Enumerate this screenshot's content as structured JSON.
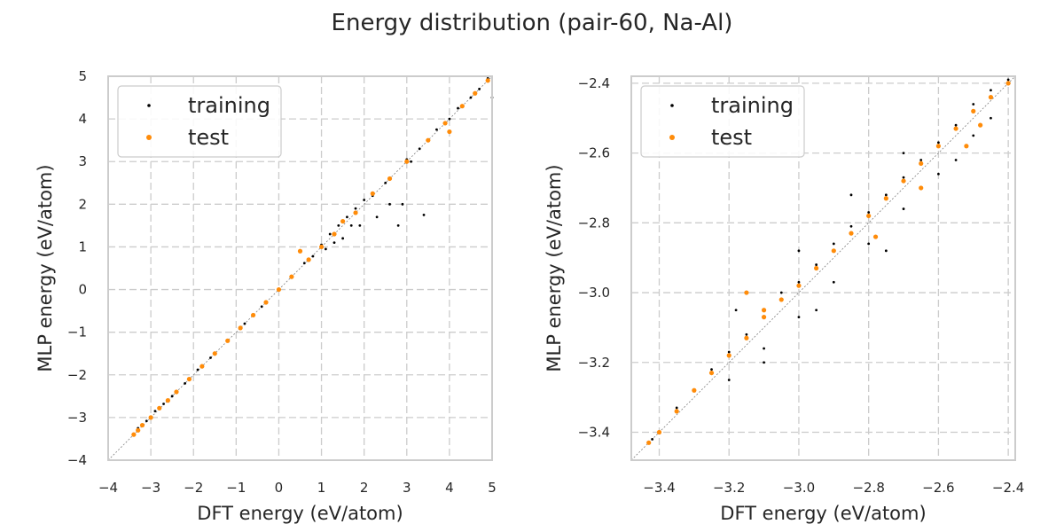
{
  "figure": {
    "title": "Energy distribution (pair-60, Na-Al)"
  },
  "colors": {
    "training": "#000000",
    "test": "#ff8c0a"
  },
  "chart_data": [
    {
      "type": "scatter",
      "title": "",
      "xlabel": "DFT energy (eV/atom)",
      "ylabel": "MLP energy (eV/atom)",
      "xlim": [
        -4,
        5
      ],
      "ylim": [
        -4,
        5
      ],
      "xticks": [
        -4,
        -3,
        -2,
        -1,
        0,
        1,
        2,
        3,
        4,
        5
      ],
      "yticks": [
        -4,
        -3,
        -2,
        -1,
        0,
        1,
        2,
        3,
        4,
        5
      ],
      "xtick_labels": [
        "−4",
        "−3",
        "−2",
        "−1",
        "0",
        "1",
        "2",
        "3",
        "4",
        "5"
      ],
      "ytick_labels": [
        "−4",
        "−3",
        "−2",
        "−1",
        "0",
        "1",
        "2",
        "3",
        "4",
        "5"
      ],
      "grid": true,
      "legend": "top-left",
      "diagonal_reference": true,
      "series": [
        {
          "name": "training",
          "color": "#000000",
          "marker_size": 1.4,
          "points": [
            [
              -3.42,
              -3.4
            ],
            [
              -3.3,
              -3.25
            ],
            [
              -3.1,
              -3.08
            ],
            [
              -2.9,
              -2.85
            ],
            [
              -2.7,
              -2.68
            ],
            [
              -2.5,
              -2.5
            ],
            [
              -2.2,
              -2.2
            ],
            [
              -1.9,
              -1.88
            ],
            [
              -1.6,
              -1.6
            ],
            [
              -1.2,
              -1.2
            ],
            [
              -0.8,
              -0.8
            ],
            [
              -0.4,
              -0.4
            ],
            [
              0.0,
              0.02
            ],
            [
              0.3,
              0.3
            ],
            [
              0.6,
              0.62
            ],
            [
              0.8,
              0.78
            ],
            [
              1.0,
              1.05
            ],
            [
              1.1,
              0.95
            ],
            [
              1.2,
              1.3
            ],
            [
              1.3,
              1.1
            ],
            [
              1.4,
              1.5
            ],
            [
              1.5,
              1.2
            ],
            [
              1.6,
              1.7
            ],
            [
              1.7,
              1.5
            ],
            [
              1.8,
              1.9
            ],
            [
              1.9,
              1.5
            ],
            [
              2.0,
              2.1
            ],
            [
              2.2,
              2.2
            ],
            [
              2.3,
              1.7
            ],
            [
              2.5,
              2.5
            ],
            [
              2.6,
              2.0
            ],
            [
              2.8,
              1.5
            ],
            [
              2.9,
              2.0
            ],
            [
              3.0,
              3.05
            ],
            [
              3.1,
              3.0
            ],
            [
              3.3,
              3.3
            ],
            [
              3.4,
              1.75
            ],
            [
              3.5,
              3.5
            ],
            [
              3.7,
              3.75
            ],
            [
              4.0,
              4.0
            ],
            [
              4.2,
              4.25
            ],
            [
              4.5,
              4.5
            ],
            [
              4.7,
              4.7
            ],
            [
              4.9,
              4.95
            ],
            [
              5.0,
              4.5
            ]
          ]
        },
        {
          "name": "test",
          "color": "#ff8c0a",
          "marker_size": 2.6,
          "points": [
            [
              -3.4,
              -3.4
            ],
            [
              -3.3,
              -3.3
            ],
            [
              -3.2,
              -3.18
            ],
            [
              -3.0,
              -3.0
            ],
            [
              -2.8,
              -2.78
            ],
            [
              -2.6,
              -2.6
            ],
            [
              -2.4,
              -2.4
            ],
            [
              -2.1,
              -2.1
            ],
            [
              -1.8,
              -1.8
            ],
            [
              -1.5,
              -1.5
            ],
            [
              -1.2,
              -1.2
            ],
            [
              -0.9,
              -0.9
            ],
            [
              -0.6,
              -0.6
            ],
            [
              -0.3,
              -0.3
            ],
            [
              0.0,
              0.0
            ],
            [
              0.3,
              0.3
            ],
            [
              0.5,
              0.9
            ],
            [
              0.7,
              0.7
            ],
            [
              1.0,
              1.0
            ],
            [
              1.3,
              1.3
            ],
            [
              1.5,
              1.6
            ],
            [
              1.8,
              1.8
            ],
            [
              2.2,
              2.25
            ],
            [
              2.6,
              2.6
            ],
            [
              3.0,
              3.0
            ],
            [
              3.5,
              3.5
            ],
            [
              3.9,
              3.9
            ],
            [
              4.0,
              3.7
            ],
            [
              4.3,
              4.3
            ],
            [
              4.6,
              4.6
            ],
            [
              4.9,
              4.9
            ]
          ]
        }
      ]
    },
    {
      "type": "scatter",
      "title": "",
      "xlabel": "DFT energy (eV/atom)",
      "ylabel": "MLP energy (eV/atom)",
      "xlim": [
        -3.48,
        -2.38
      ],
      "ylim": [
        -3.48,
        -2.38
      ],
      "xticks": [
        -3.4,
        -3.2,
        -3.0,
        -2.8,
        -2.6,
        -2.4
      ],
      "yticks": [
        -3.4,
        -3.2,
        -3.0,
        -2.8,
        -2.6,
        -2.4
      ],
      "xtick_labels": [
        "−3.4",
        "−3.2",
        "−3.0",
        "−2.8",
        "−2.6",
        "−2.4"
      ],
      "ytick_labels": [
        "−3.4",
        "−3.2",
        "−3.0",
        "−2.8",
        "−2.6",
        "−2.4"
      ],
      "grid": true,
      "legend": "top-left",
      "diagonal_reference": true,
      "series": [
        {
          "name": "training",
          "color": "#000000",
          "marker_size": 1.4,
          "points": [
            [
              -3.42,
              -3.42
            ],
            [
              -3.35,
              -3.33
            ],
            [
              -3.3,
              -3.28
            ],
            [
              -3.25,
              -3.22
            ],
            [
              -3.2,
              -3.17
            ],
            [
              -3.15,
              -3.12
            ],
            [
              -3.1,
              -3.05
            ],
            [
              -3.05,
              -3.0
            ],
            [
              -3.0,
              -2.97
            ],
            [
              -2.95,
              -2.92
            ],
            [
              -2.9,
              -2.86
            ],
            [
              -2.85,
              -2.81
            ],
            [
              -2.8,
              -2.77
            ],
            [
              -2.75,
              -2.72
            ],
            [
              -2.7,
              -2.67
            ],
            [
              -2.65,
              -2.62
            ],
            [
              -2.6,
              -2.57
            ],
            [
              -2.55,
              -2.52
            ],
            [
              -2.5,
              -2.46
            ],
            [
              -2.45,
              -2.42
            ],
            [
              -2.4,
              -2.39
            ],
            [
              -3.2,
              -3.25
            ],
            [
              -3.1,
              -3.16
            ],
            [
              -3.0,
              -3.07
            ],
            [
              -2.9,
              -2.97
            ],
            [
              -2.8,
              -2.86
            ],
            [
              -2.7,
              -2.76
            ],
            [
              -2.6,
              -2.66
            ],
            [
              -2.5,
              -2.55
            ],
            [
              -2.45,
              -2.5
            ],
            [
              -3.18,
              -3.05
            ],
            [
              -3.0,
              -2.88
            ],
            [
              -2.85,
              -2.72
            ],
            [
              -2.7,
              -2.6
            ],
            [
              -3.1,
              -3.2
            ],
            [
              -2.95,
              -3.05
            ],
            [
              -2.75,
              -2.88
            ],
            [
              -2.55,
              -2.62
            ]
          ]
        },
        {
          "name": "test",
          "color": "#ff8c0a",
          "marker_size": 2.6,
          "points": [
            [
              -3.43,
              -3.43
            ],
            [
              -3.4,
              -3.4
            ],
            [
              -3.35,
              -3.34
            ],
            [
              -3.3,
              -3.28
            ],
            [
              -3.25,
              -3.23
            ],
            [
              -3.2,
              -3.18
            ],
            [
              -3.15,
              -3.13
            ],
            [
              -3.1,
              -3.07
            ],
            [
              -3.05,
              -3.02
            ],
            [
              -3.0,
              -2.98
            ],
            [
              -2.95,
              -2.93
            ],
            [
              -2.9,
              -2.88
            ],
            [
              -2.85,
              -2.83
            ],
            [
              -2.8,
              -2.78
            ],
            [
              -2.75,
              -2.73
            ],
            [
              -2.7,
              -2.68
            ],
            [
              -2.65,
              -2.63
            ],
            [
              -2.6,
              -2.58
            ],
            [
              -2.55,
              -2.53
            ],
            [
              -2.5,
              -2.48
            ],
            [
              -2.45,
              -2.44
            ],
            [
              -2.4,
              -2.4
            ],
            [
              -3.15,
              -3.0
            ],
            [
              -3.1,
              -3.05
            ],
            [
              -2.78,
              -2.84
            ],
            [
              -2.65,
              -2.7
            ],
            [
              -2.52,
              -2.58
            ],
            [
              -2.48,
              -2.52
            ]
          ]
        }
      ]
    }
  ]
}
